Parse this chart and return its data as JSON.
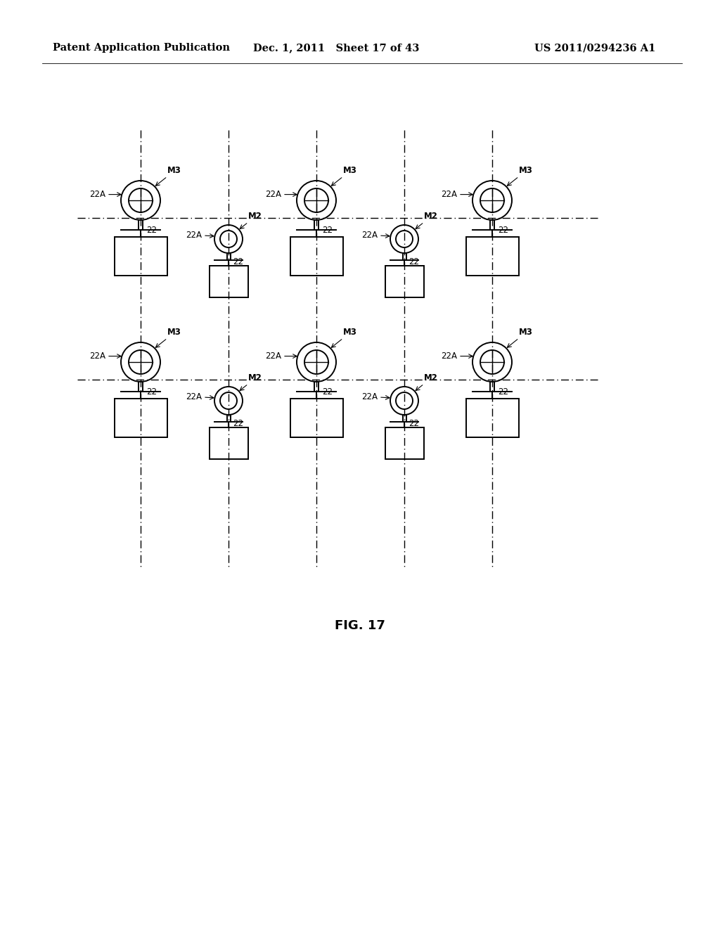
{
  "title": "FIG. 17",
  "header_left": "Patent Application Publication",
  "header_mid": "Dec. 1, 2011   Sheet 17 of 43",
  "header_right": "US 2011/0294236 A1",
  "bg_color": "#ffffff",
  "line_color": "#000000",
  "font_size_header": 10.5,
  "font_size_label": 8.5,
  "font_size_title": 13,
  "label_22A": "22A",
  "label_22": "22",
  "label_M3": "M3",
  "label_M2": "M2"
}
